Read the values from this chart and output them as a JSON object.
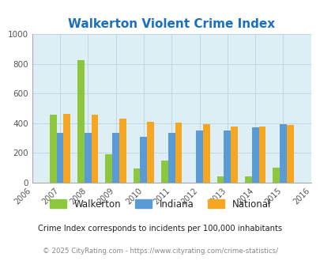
{
  "title": "Walkerton Violent Crime Index",
  "years": [
    2006,
    2007,
    2008,
    2009,
    2010,
    2011,
    2012,
    2013,
    2014,
    2015,
    2016
  ],
  "bar_years": [
    2007,
    2008,
    2009,
    2010,
    2011,
    2012,
    2013,
    2014,
    2015
  ],
  "walkerton": [
    455,
    825,
    190,
    95,
    150,
    0,
    45,
    45,
    100
  ],
  "indiana": [
    335,
    335,
    335,
    310,
    335,
    350,
    350,
    370,
    395
  ],
  "national": [
    465,
    455,
    430,
    408,
    405,
    395,
    375,
    380,
    390
  ],
  "color_walkerton": "#8dc63f",
  "color_indiana": "#5b9bd5",
  "color_national": "#f5a623",
  "ylim": [
    0,
    1000
  ],
  "yticks": [
    0,
    200,
    400,
    600,
    800,
    1000
  ],
  "bg_color": "#ddeef5",
  "grid_color": "#c0d8e4",
  "title_color": "#1a6fbf",
  "footnote1": "Crime Index corresponds to incidents per 100,000 inhabitants",
  "footnote2": "© 2025 CityRating.com - https://www.cityrating.com/crime-statistics/",
  "bar_width": 0.25
}
